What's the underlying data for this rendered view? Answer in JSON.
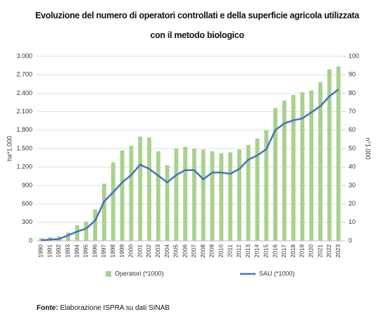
{
  "chart_data": {
    "type": "combo",
    "title": "Evoluzione del numero di operatori controllati e della superficie agricola utilizzata con il metodo biologico",
    "ylabel": "ha*1.000",
    "y2label": "n°1.000",
    "categories": [
      "1990",
      "1991",
      "1992",
      "1993",
      "1994",
      "1995",
      "1996",
      "1997",
      "1998",
      "1999",
      "2000",
      "2001",
      "2002",
      "2003",
      "2004",
      "2005",
      "2006",
      "2007",
      "2008",
      "2009",
      "2010",
      "2011",
      "2012",
      "2013",
      "2014",
      "2015",
      "2016",
      "2017",
      "2018",
      "2019",
      "2020",
      "2021",
      "2022",
      "2023"
    ],
    "series": [
      {
        "name": "Operatori (*1000)",
        "type": "bar",
        "axis": "y2",
        "color": "#a9d18e",
        "values": [
          1.5,
          2,
          2.5,
          4.5,
          8.5,
          10.5,
          17,
          31,
          42.5,
          49,
          51.5,
          56.5,
          56,
          48.5,
          41,
          50,
          51,
          50,
          49.5,
          48.5,
          47.5,
          48,
          49.5,
          52,
          55.5,
          60,
          72,
          76,
          79,
          80.5,
          81.5,
          86,
          93,
          94.5
        ]
      },
      {
        "name": "SAU (*1000)",
        "type": "line",
        "axis": "y",
        "color": "#4472c4",
        "values": [
          10,
          20,
          30,
          90,
          150,
          200,
          330,
          640,
          790,
          950,
          1070,
          1240,
          1170,
          1060,
          950,
          1070,
          1150,
          1150,
          1000,
          1110,
          1110,
          1090,
          1170,
          1320,
          1390,
          1490,
          1800,
          1910,
          1960,
          1990,
          2090,
          2190,
          2350,
          2460
        ]
      }
    ],
    "ylim": [
      0,
      3000
    ],
    "yticks": [
      0,
      300,
      600,
      900,
      {
        "value": 1200,
        "label": "1.200"
      },
      {
        "value": 1500,
        "label": "1.500"
      },
      {
        "value": 1800,
        "label": "1.800"
      },
      {
        "value": 2100,
        "label": "2.100"
      },
      {
        "value": 2400,
        "label": "2.400"
      },
      {
        "value": 2700,
        "label": "2.700"
      },
      {
        "value": 3000,
        "label": "3.000"
      }
    ],
    "y2lim": [
      0,
      100
    ],
    "y2ticks": [
      0,
      10,
      20,
      30,
      40,
      50,
      60,
      70,
      80,
      90,
      100
    ],
    "grid": true,
    "legend": "bottom",
    "source_label": "Fonte:",
    "source": "Elaborazione ISPRA su dati SINAB"
  }
}
